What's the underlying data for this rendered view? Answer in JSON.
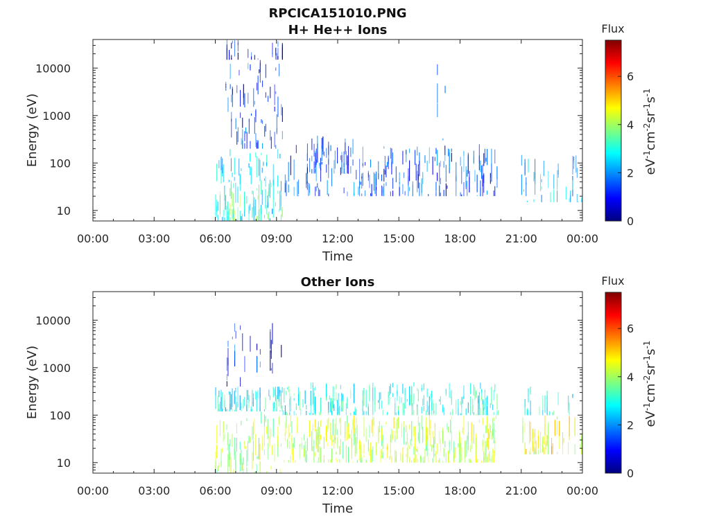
{
  "figure": {
    "title": "RPCICA151010.PNG"
  },
  "colorbar": {
    "label": "Flux",
    "unit_text": "eV-1cm-2sr-1s-1",
    "unit_parts": [
      {
        "t": "eV",
        "sup": false
      },
      {
        "t": "-1",
        "sup": true
      },
      {
        "t": "cm",
        "sup": false
      },
      {
        "t": "-2",
        "sup": true
      },
      {
        "t": "sr",
        "sup": false
      },
      {
        "t": "-1",
        "sup": true
      },
      {
        "t": "s",
        "sup": false
      },
      {
        "t": "-1",
        "sup": true
      }
    ],
    "ticks": [
      "0",
      "2",
      "4",
      "6"
    ],
    "range": [
      0,
      7.5
    ],
    "colormap": [
      "#00007f",
      "#0000ff",
      "#007fff",
      "#00ffff",
      "#7fff7f",
      "#ffff00",
      "#ff7f00",
      "#ff0000",
      "#7f0000"
    ]
  },
  "chart_data": [
    {
      "type": "heatmap",
      "title": "H+ He++ Ions",
      "xlabel": "Time",
      "ylabel": "Energy (eV)",
      "x_ticks": [
        "00:00",
        "03:00",
        "06:00",
        "09:00",
        "12:00",
        "15:00",
        "18:00",
        "21:00",
        "00:00"
      ],
      "xlim_hours": [
        0,
        24
      ],
      "y_scale": "log",
      "y_ticks": [
        "10",
        "100",
        "1000",
        "10000"
      ],
      "ylim": [
        6,
        40000
      ],
      "regions": [
        {
          "t0": 6.0,
          "t1": 9.3,
          "e0": 6,
          "e1": 200,
          "flux": 2.6,
          "density": 0.9
        },
        {
          "t0": 6.0,
          "t1": 9.3,
          "e0": 6,
          "e1": 30,
          "flux": 3.6,
          "density": 0.5
        },
        {
          "t0": 6.5,
          "t1": 9.3,
          "e0": 200,
          "e1": 15000,
          "flux": 1.4,
          "density": 0.8
        },
        {
          "t0": 6.5,
          "t1": 9.3,
          "e0": 15000,
          "e1": 40000,
          "flux": 1.0,
          "density": 0.25
        },
        {
          "t0": 9.3,
          "t1": 19.9,
          "e0": 20,
          "e1": 250,
          "flux": 1.5,
          "density": 0.55
        },
        {
          "t0": 10.5,
          "t1": 13.0,
          "e0": 60,
          "e1": 400,
          "flux": 1.3,
          "density": 0.5
        },
        {
          "t0": 16.6,
          "t1": 17.3,
          "e0": 300,
          "e1": 30000,
          "flux": 2.0,
          "density": 0.2
        },
        {
          "t0": 21.0,
          "t1": 24.0,
          "e0": 15,
          "e1": 150,
          "flux": 2.4,
          "density": 0.4
        }
      ]
    },
    {
      "type": "heatmap",
      "title": "Other Ions",
      "xlabel": "Time",
      "ylabel": "Energy (eV)",
      "x_ticks": [
        "00:00",
        "03:00",
        "06:00",
        "09:00",
        "12:00",
        "15:00",
        "18:00",
        "21:00",
        "00:00"
      ],
      "xlim_hours": [
        0,
        24
      ],
      "y_scale": "log",
      "y_ticks": [
        "10",
        "100",
        "1000",
        "10000"
      ],
      "ylim": [
        6,
        40000
      ],
      "regions": [
        {
          "t0": 6.0,
          "t1": 9.3,
          "e0": 6,
          "e1": 120,
          "flux": 4.0,
          "density": 0.9
        },
        {
          "t0": 6.0,
          "t1": 9.3,
          "e0": 120,
          "e1": 400,
          "flux": 2.8,
          "density": 0.8
        },
        {
          "t0": 6.5,
          "t1": 9.3,
          "e0": 400,
          "e1": 10000,
          "flux": 1.1,
          "density": 0.3
        },
        {
          "t0": 9.3,
          "t1": 19.9,
          "e0": 10,
          "e1": 100,
          "flux": 4.2,
          "density": 0.8
        },
        {
          "t0": 9.3,
          "t1": 19.9,
          "e0": 100,
          "e1": 500,
          "flux": 3.0,
          "density": 0.65
        },
        {
          "t0": 16.6,
          "t1": 17.3,
          "e0": 500,
          "e1": 20000,
          "flux": 1.3,
          "density": 0.15
        },
        {
          "t0": 21.0,
          "t1": 24.0,
          "e0": 15,
          "e1": 100,
          "flux": 4.6,
          "density": 0.5
        },
        {
          "t0": 21.0,
          "t1": 24.0,
          "e0": 100,
          "e1": 400,
          "flux": 2.9,
          "density": 0.3
        }
      ]
    }
  ]
}
